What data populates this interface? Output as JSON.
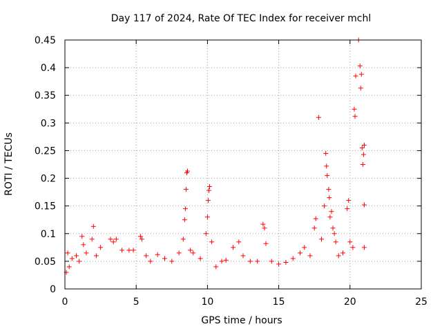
{
  "chart_data": {
    "type": "scatter",
    "title": "Day 117 of 2024, Rate Of TEC Index for receiver mchl",
    "xlabel": "GPS time / hours",
    "ylabel": "ROTI / TECUs",
    "xlim": [
      0,
      25
    ],
    "ylim": [
      0,
      0.45
    ],
    "xticks": [
      0,
      5,
      10,
      15,
      20,
      25
    ],
    "yticks": [
      0,
      0.05,
      0.1,
      0.15,
      0.2,
      0.25,
      0.3,
      0.35,
      0.4,
      0.45
    ],
    "grid": true,
    "marker": "+",
    "marker_color": "#ff0000",
    "axis_color": "#000000",
    "grid_color": "#a0a0a0",
    "series": [
      {
        "name": "ROTI",
        "points": [
          [
            0.1,
            0.03
          ],
          [
            0.2,
            0.065
          ],
          [
            0.3,
            0.04
          ],
          [
            0.5,
            0.055
          ],
          [
            0.8,
            0.06
          ],
          [
            1.0,
            0.05
          ],
          [
            1.2,
            0.095
          ],
          [
            1.3,
            0.08
          ],
          [
            1.5,
            0.065
          ],
          [
            1.9,
            0.09
          ],
          [
            2.0,
            0.113
          ],
          [
            2.2,
            0.06
          ],
          [
            2.5,
            0.075
          ],
          [
            3.2,
            0.09
          ],
          [
            3.4,
            0.085
          ],
          [
            3.6,
            0.09
          ],
          [
            4.0,
            0.07
          ],
          [
            4.5,
            0.07
          ],
          [
            4.8,
            0.07
          ],
          [
            5.3,
            0.095
          ],
          [
            5.4,
            0.09
          ],
          [
            5.7,
            0.06
          ],
          [
            6.0,
            0.05
          ],
          [
            6.5,
            0.062
          ],
          [
            7.0,
            0.055
          ],
          [
            7.5,
            0.05
          ],
          [
            8.0,
            0.065
          ],
          [
            8.3,
            0.09
          ],
          [
            8.4,
            0.125
          ],
          [
            8.45,
            0.145
          ],
          [
            8.5,
            0.18
          ],
          [
            8.55,
            0.21
          ],
          [
            8.6,
            0.213
          ],
          [
            8.8,
            0.07
          ],
          [
            9.0,
            0.065
          ],
          [
            9.5,
            0.055
          ],
          [
            9.9,
            0.1
          ],
          [
            10.0,
            0.13
          ],
          [
            10.05,
            0.16
          ],
          [
            10.1,
            0.178
          ],
          [
            10.15,
            0.185
          ],
          [
            10.3,
            0.085
          ],
          [
            10.6,
            0.04
          ],
          [
            11.0,
            0.05
          ],
          [
            11.3,
            0.052
          ],
          [
            11.8,
            0.075
          ],
          [
            12.2,
            0.085
          ],
          [
            12.5,
            0.06
          ],
          [
            13.0,
            0.05
          ],
          [
            13.5,
            0.05
          ],
          [
            13.9,
            0.117
          ],
          [
            14.0,
            0.11
          ],
          [
            14.1,
            0.082
          ],
          [
            14.5,
            0.05
          ],
          [
            15.0,
            0.045
          ],
          [
            15.5,
            0.048
          ],
          [
            16.0,
            0.055
          ],
          [
            16.5,
            0.065
          ],
          [
            16.8,
            0.075
          ],
          [
            17.2,
            0.06
          ],
          [
            17.5,
            0.11
          ],
          [
            17.6,
            0.127
          ],
          [
            17.8,
            0.31
          ],
          [
            18.0,
            0.09
          ],
          [
            18.2,
            0.15
          ],
          [
            18.3,
            0.245
          ],
          [
            18.35,
            0.222
          ],
          [
            18.4,
            0.205
          ],
          [
            18.5,
            0.18
          ],
          [
            18.55,
            0.165
          ],
          [
            18.6,
            0.13
          ],
          [
            18.7,
            0.14
          ],
          [
            18.8,
            0.11
          ],
          [
            18.9,
            0.1
          ],
          [
            19.0,
            0.085
          ],
          [
            19.2,
            0.06
          ],
          [
            19.5,
            0.065
          ],
          [
            19.8,
            0.145
          ],
          [
            19.9,
            0.16
          ],
          [
            20.0,
            0.085
          ],
          [
            20.2,
            0.075
          ],
          [
            20.3,
            0.325
          ],
          [
            20.35,
            0.312
          ],
          [
            20.4,
            0.385
          ],
          [
            20.6,
            0.45
          ],
          [
            20.7,
            0.403
          ],
          [
            20.75,
            0.363
          ],
          [
            20.8,
            0.388
          ],
          [
            20.85,
            0.255
          ],
          [
            20.9,
            0.225
          ],
          [
            20.95,
            0.243
          ],
          [
            21.0,
            0.26
          ],
          [
            21.0,
            0.152
          ],
          [
            21.0,
            0.075
          ]
        ]
      }
    ]
  }
}
